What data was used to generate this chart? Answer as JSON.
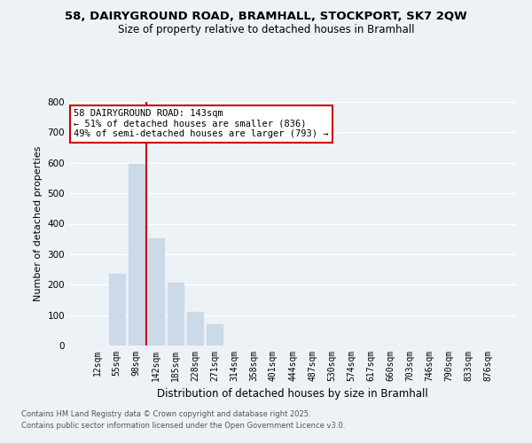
{
  "title_line1": "58, DAIRYGROUND ROAD, BRAMHALL, STOCKPORT, SK7 2QW",
  "title_line2": "Size of property relative to detached houses in Bramhall",
  "xlabel": "Distribution of detached houses by size in Bramhall",
  "ylabel": "Number of detached properties",
  "categories": [
    "12sqm",
    "55sqm",
    "98sqm",
    "142sqm",
    "185sqm",
    "228sqm",
    "271sqm",
    "314sqm",
    "358sqm",
    "401sqm",
    "444sqm",
    "487sqm",
    "530sqm",
    "574sqm",
    "617sqm",
    "660sqm",
    "703sqm",
    "746sqm",
    "790sqm",
    "833sqm",
    "876sqm"
  ],
  "values": [
    0,
    236,
    596,
    352,
    207,
    112,
    70,
    0,
    0,
    0,
    0,
    0,
    0,
    0,
    0,
    0,
    0,
    0,
    0,
    0,
    0
  ],
  "bar_color": "#ccd9e8",
  "vline_color": "#cc0000",
  "annotation_text": "58 DAIRYGROUND ROAD: 143sqm\n← 51% of detached houses are smaller (836)\n49% of semi-detached houses are larger (793) →",
  "annotation_box_color": "#cc0000",
  "ylim": [
    0,
    800
  ],
  "yticks": [
    0,
    100,
    200,
    300,
    400,
    500,
    600,
    700,
    800
  ],
  "background_color": "#edf2f7",
  "grid_color": "#ffffff",
  "footer_line1": "Contains HM Land Registry data © Crown copyright and database right 2025.",
  "footer_line2": "Contains public sector information licensed under the Open Government Licence v3.0."
}
